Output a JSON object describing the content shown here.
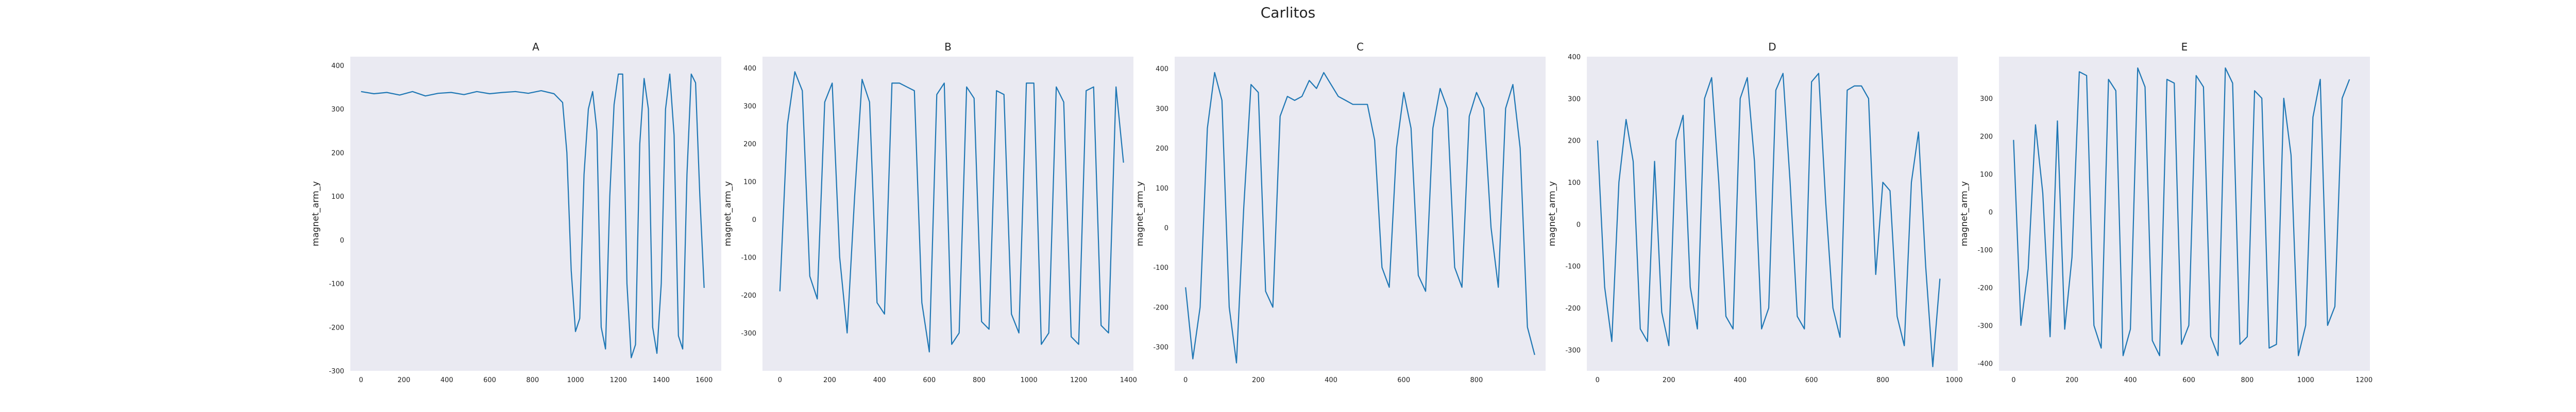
{
  "figure": {
    "title": "Carlitos"
  },
  "colors": {
    "line": "#1f77b4",
    "plot_bg": "#eaeaf2",
    "text": "#222222"
  },
  "chart_data": [
    {
      "type": "line",
      "title": "A",
      "xlabel": "",
      "ylabel": "magnet_arm_y",
      "xlim": [
        -50,
        1680
      ],
      "ylim": [
        -300,
        420
      ],
      "xticks": [
        0,
        200,
        400,
        600,
        800,
        1000,
        1200,
        1400,
        1600
      ],
      "yticks": [
        -300,
        -200,
        -100,
        0,
        100,
        200,
        300,
        400
      ],
      "grid": false,
      "series": [
        {
          "x": [
            0,
            60,
            120,
            180,
            240,
            300,
            360,
            420,
            480,
            540,
            600,
            660,
            720,
            780,
            840,
            900,
            940,
            960,
            980,
            1000,
            1020,
            1040,
            1060,
            1080,
            1100,
            1120,
            1140,
            1160,
            1180,
            1200,
            1220,
            1240,
            1260,
            1280,
            1300,
            1320,
            1340,
            1360,
            1380,
            1400,
            1420,
            1440,
            1460,
            1480,
            1500,
            1520,
            1540,
            1560,
            1580,
            1600
          ],
          "y": [
            340,
            335,
            338,
            332,
            340,
            330,
            336,
            338,
            333,
            340,
            335,
            338,
            340,
            336,
            342,
            335,
            315,
            200,
            -70,
            -210,
            -180,
            150,
            300,
            340,
            250,
            -200,
            -250,
            100,
            310,
            380,
            380,
            -100,
            -270,
            -240,
            220,
            370,
            300,
            -200,
            -260,
            -100,
            300,
            380,
            240,
            -220,
            -250,
            150,
            380,
            360,
            100,
            -110
          ]
        }
      ]
    },
    {
      "type": "line",
      "title": "B",
      "xlabel": "",
      "ylabel": "magnet_arm_y",
      "xlim": [
        -70,
        1420
      ],
      "ylim": [
        -400,
        430
      ],
      "xticks": [
        0,
        200,
        400,
        600,
        800,
        1000,
        1200,
        1400
      ],
      "yticks": [
        -300,
        -200,
        -100,
        0,
        100,
        200,
        300,
        400
      ],
      "grid": false,
      "series": [
        {
          "x": [
            0,
            30,
            60,
            90,
            120,
            150,
            180,
            210,
            240,
            270,
            300,
            330,
            360,
            390,
            420,
            450,
            480,
            510,
            540,
            570,
            600,
            630,
            660,
            690,
            720,
            750,
            780,
            810,
            840,
            870,
            900,
            930,
            960,
            990,
            1020,
            1050,
            1080,
            1110,
            1140,
            1170,
            1200,
            1230,
            1260,
            1290,
            1320,
            1350,
            1380
          ],
          "y": [
            -190,
            250,
            390,
            340,
            -150,
            -210,
            310,
            360,
            -100,
            -300,
            60,
            370,
            310,
            -220,
            -250,
            360,
            360,
            350,
            340,
            -220,
            -350,
            330,
            360,
            -330,
            -300,
            350,
            320,
            -270,
            -290,
            340,
            330,
            -250,
            -300,
            360,
            360,
            -330,
            -300,
            350,
            310,
            -310,
            -330,
            340,
            350,
            -280,
            -300,
            350,
            150
          ]
        }
      ]
    },
    {
      "type": "line",
      "title": "C",
      "xlabel": "",
      "ylabel": "magnet_arm_y",
      "xlim": [
        -30,
        990
      ],
      "ylim": [
        -360,
        430
      ],
      "xticks": [
        0,
        200,
        400,
        600,
        800
      ],
      "yticks": [
        -300,
        -200,
        -100,
        0,
        100,
        200,
        300,
        400
      ],
      "grid": false,
      "series": [
        {
          "x": [
            0,
            20,
            40,
            60,
            80,
            100,
            120,
            140,
            160,
            180,
            200,
            220,
            240,
            260,
            280,
            300,
            320,
            340,
            360,
            380,
            400,
            420,
            440,
            460,
            480,
            500,
            520,
            540,
            560,
            580,
            600,
            620,
            640,
            660,
            680,
            700,
            720,
            740,
            760,
            780,
            800,
            820,
            840,
            860,
            880,
            900,
            920,
            940,
            960
          ],
          "y": [
            -150,
            -330,
            -200,
            250,
            390,
            320,
            -200,
            -340,
            50,
            360,
            340,
            -160,
            -200,
            280,
            330,
            320,
            330,
            370,
            350,
            390,
            360,
            330,
            320,
            310,
            310,
            310,
            220,
            -100,
            -150,
            200,
            340,
            250,
            -120,
            -160,
            250,
            350,
            300,
            -100,
            -150,
            280,
            340,
            300,
            0,
            -150,
            300,
            360,
            200,
            -250,
            -320
          ]
        }
      ]
    },
    {
      "type": "line",
      "title": "D",
      "xlabel": "",
      "ylabel": "magnet_arm_y",
      "xlim": [
        -30,
        1010
      ],
      "ylim": [
        -350,
        400
      ],
      "xticks": [
        0,
        200,
        400,
        600,
        800,
        1000
      ],
      "yticks": [
        -300,
        -200,
        -100,
        0,
        100,
        200,
        300,
        400
      ],
      "grid": false,
      "series": [
        {
          "x": [
            0,
            20,
            40,
            60,
            80,
            100,
            120,
            140,
            160,
            180,
            200,
            220,
            240,
            260,
            280,
            300,
            320,
            340,
            360,
            380,
            400,
            420,
            440,
            460,
            480,
            500,
            520,
            540,
            560,
            580,
            600,
            620,
            640,
            660,
            680,
            700,
            720,
            740,
            760,
            780,
            800,
            820,
            840,
            860,
            880,
            900,
            920,
            940,
            960
          ],
          "y": [
            200,
            -150,
            -280,
            100,
            250,
            150,
            -250,
            -280,
            150,
            -210,
            -290,
            200,
            260,
            -150,
            -250,
            300,
            350,
            100,
            -220,
            -250,
            300,
            350,
            150,
            -250,
            -200,
            320,
            360,
            100,
            -220,
            -250,
            340,
            360,
            50,
            -200,
            -270,
            320,
            330,
            330,
            300,
            -120,
            100,
            80,
            -220,
            -290,
            100,
            220,
            -100,
            -340,
            -130
          ]
        }
      ]
    },
    {
      "type": "line",
      "title": "E",
      "xlabel": "",
      "ylabel": "magnet_arm_y",
      "xlim": [
        -50,
        1220
      ],
      "ylim": [
        -420,
        410
      ],
      "xticks": [
        0,
        200,
        400,
        600,
        800,
        1000,
        1200
      ],
      "yticks": [
        -400,
        -300,
        -200,
        -100,
        0,
        100,
        200,
        300
      ],
      "grid": false,
      "series": [
        {
          "x": [
            0,
            25,
            50,
            75,
            100,
            125,
            150,
            175,
            200,
            225,
            250,
            275,
            300,
            325,
            350,
            375,
            400,
            425,
            450,
            475,
            500,
            525,
            550,
            575,
            600,
            625,
            650,
            675,
            700,
            725,
            750,
            775,
            800,
            825,
            850,
            875,
            900,
            925,
            950,
            975,
            1000,
            1025,
            1050,
            1075,
            1100,
            1125,
            1150
          ],
          "y": [
            190,
            -300,
            -150,
            230,
            50,
            -330,
            240,
            -310,
            -120,
            370,
            360,
            -300,
            -360,
            350,
            320,
            -380,
            -310,
            380,
            330,
            -340,
            -380,
            350,
            340,
            -350,
            -300,
            360,
            330,
            -330,
            -380,
            380,
            340,
            -350,
            -330,
            320,
            300,
            -360,
            -350,
            300,
            150,
            -380,
            -300,
            250,
            350,
            -300,
            -250,
            300,
            350
          ]
        }
      ]
    }
  ]
}
